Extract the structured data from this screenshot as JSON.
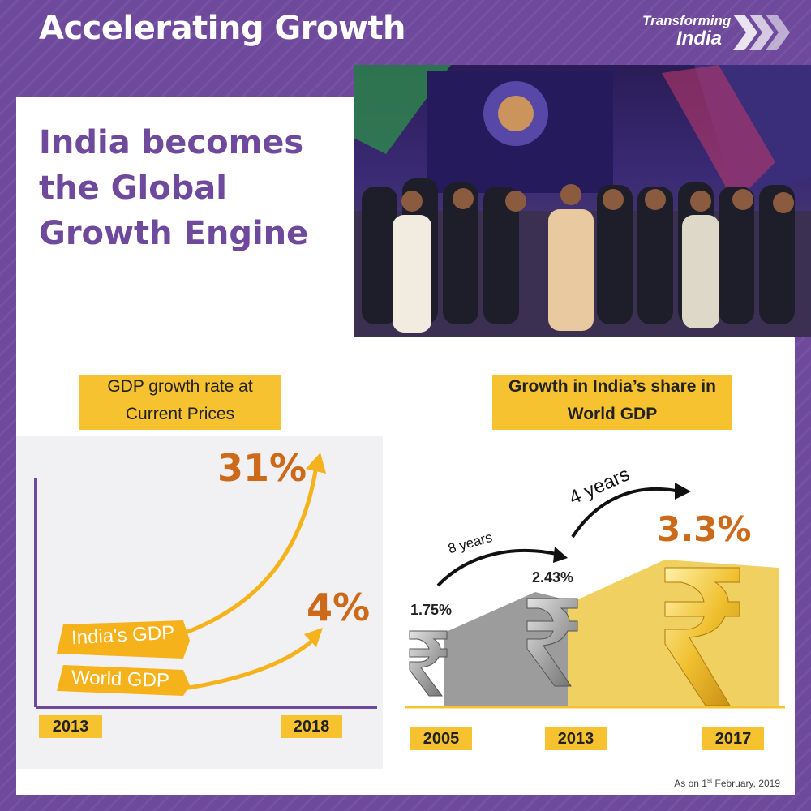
{
  "header": {
    "title": "Accelerating Growth",
    "brand_line1": "Transforming",
    "brand_line2": "India"
  },
  "headline": [
    "India becomes",
    "the Global",
    "Growth Engine"
  ],
  "left_chart": {
    "title_line1": "GDP growth rate at",
    "title_line2": "Current Prices",
    "series": [
      {
        "name": "India's GDP",
        "value_label": "31%"
      },
      {
        "name": "World GDP",
        "value_label": "4%"
      }
    ],
    "x_labels": [
      "2013",
      "2018"
    ]
  },
  "right_chart": {
    "title_line1": "Growth in India’s share in",
    "title_line2": "World GDP",
    "points": [
      {
        "year": "2005",
        "value": "1.75%"
      },
      {
        "year": "2013",
        "value": "2.43%"
      },
      {
        "year": "2017",
        "value": "3.3%"
      }
    ],
    "interval1": "8 years",
    "interval2": "4 years"
  },
  "footnote": {
    "prefix": "As on 1",
    "sup": "st",
    "suffix": " February, 2019"
  },
  "colors": {
    "purple": "#6f4a9c",
    "yellow": "#f6c230",
    "orange": "#cc6a1a",
    "arrow": "#f5b21a"
  }
}
